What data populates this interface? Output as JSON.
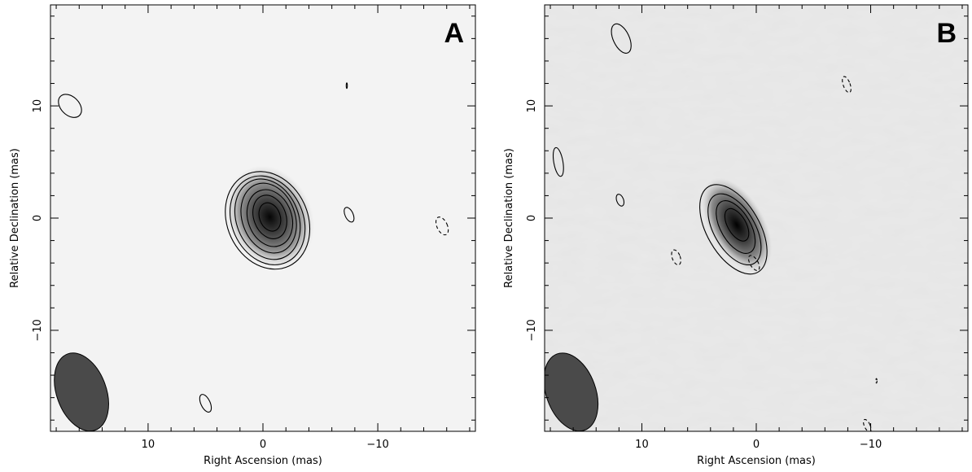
{
  "chart_data": [
    {
      "type": "contour",
      "panel_label": "A",
      "xlabel": "Right Ascension  (mas)",
      "ylabel": "Relative Declination  (mas)",
      "xlim": [
        18.5,
        -18.5
      ],
      "ylim": [
        -19,
        19
      ],
      "xticks": [
        10,
        0,
        -10
      ],
      "yticks": [
        10,
        0,
        -10
      ],
      "xtick_labels": [
        "10",
        "0",
        "−10"
      ],
      "ytick_labels": [
        "10",
        "0",
        "−10"
      ],
      "background": "#f3f3f3",
      "peak": {
        "x": -0.6,
        "y": 0.1
      },
      "beam": {
        "x": 15.8,
        "y": -15.5,
        "major": 3.8,
        "minor": 1.8,
        "angle": -20
      },
      "contours": [
        {
          "x": -0.6,
          "y": 0.1,
          "rx": 0.9,
          "ry": 1.3,
          "angle": -20,
          "style": "solid"
        },
        {
          "x": -0.6,
          "y": 0.1,
          "rx": 1.4,
          "ry": 2.0,
          "angle": -20,
          "style": "solid"
        },
        {
          "x": -0.6,
          "y": 0.0,
          "rx": 1.9,
          "ry": 2.6,
          "angle": -20,
          "style": "solid"
        },
        {
          "x": -0.5,
          "y": 0.0,
          "rx": 2.3,
          "ry": 3.2,
          "angle": -20,
          "style": "solid"
        },
        {
          "x": -0.4,
          "y": -0.1,
          "rx": 2.7,
          "ry": 3.7,
          "angle": -22,
          "style": "solid"
        },
        {
          "x": -0.4,
          "y": -0.2,
          "rx": 3.1,
          "ry": 4.1,
          "angle": -24,
          "style": "solid"
        },
        {
          "x": -0.4,
          "y": -0.2,
          "rx": 3.5,
          "ry": 4.5,
          "angle": -25,
          "style": "solid"
        },
        {
          "x": 16.8,
          "y": 10.0,
          "rx": 0.8,
          "ry": 1.2,
          "angle": -45,
          "style": "solid"
        },
        {
          "x": -7.5,
          "y": 0.3,
          "rx": 0.35,
          "ry": 0.7,
          "angle": -25,
          "style": "solid"
        },
        {
          "x": 5.0,
          "y": -16.5,
          "rx": 0.4,
          "ry": 0.85,
          "angle": -25,
          "style": "solid"
        },
        {
          "x": -7.3,
          "y": 11.8,
          "rx": 0.05,
          "ry": 0.25,
          "angle": 0,
          "style": "solid"
        },
        {
          "x": -15.6,
          "y": -0.7,
          "rx": 0.45,
          "ry": 0.85,
          "angle": -25,
          "style": "dashed"
        }
      ]
    },
    {
      "type": "contour",
      "panel_label": "B",
      "xlabel": "Right Ascension  (mas)",
      "ylabel": "Relative Declination  (mas)",
      "xlim": [
        18.5,
        -18.5
      ],
      "ylim": [
        -19,
        19
      ],
      "xticks": [
        10,
        0,
        -10
      ],
      "yticks": [
        10,
        0,
        -10
      ],
      "xtick_labels": [
        "10",
        "0",
        "−10"
      ],
      "ytick_labels": [
        "10",
        "0",
        "−10"
      ],
      "background": "#e6e6e6",
      "peak": {
        "x": 1.7,
        "y": -0.6
      },
      "beam": {
        "x": 16.2,
        "y": -15.5,
        "major": 3.8,
        "minor": 1.8,
        "angle": -20
      },
      "contours": [
        {
          "x": 1.7,
          "y": -0.6,
          "rx": 0.8,
          "ry": 1.6,
          "angle": -30,
          "style": "solid"
        },
        {
          "x": 1.8,
          "y": -0.8,
          "rx": 1.3,
          "ry": 2.6,
          "angle": -30,
          "style": "solid"
        },
        {
          "x": 1.9,
          "y": -1.0,
          "rx": 1.8,
          "ry": 3.5,
          "angle": -30,
          "style": "solid"
        },
        {
          "x": 2.0,
          "y": -1.0,
          "rx": 2.3,
          "ry": 4.4,
          "angle": -30,
          "style": "solid"
        },
        {
          "x": 11.8,
          "y": 16.0,
          "rx": 0.7,
          "ry": 1.4,
          "angle": -25,
          "style": "solid"
        },
        {
          "x": 17.3,
          "y": 5.0,
          "rx": 0.4,
          "ry": 1.3,
          "angle": -10,
          "style": "solid"
        },
        {
          "x": 11.9,
          "y": 1.6,
          "rx": 0.3,
          "ry": 0.55,
          "angle": -20,
          "style": "solid"
        },
        {
          "x": 7.0,
          "y": -3.5,
          "rx": 0.35,
          "ry": 0.7,
          "angle": -20,
          "style": "dashed"
        },
        {
          "x": 0.2,
          "y": -4.0,
          "rx": 0.35,
          "ry": 0.75,
          "angle": -30,
          "style": "dashed"
        },
        {
          "x": -7.9,
          "y": 11.9,
          "rx": 0.3,
          "ry": 0.75,
          "angle": -20,
          "style": "dashed"
        },
        {
          "x": -10.5,
          "y": -14.5,
          "rx": 0.05,
          "ry": 0.2,
          "angle": 0,
          "style": "dashed"
        },
        {
          "x": -9.7,
          "y": -18.5,
          "rx": 0.25,
          "ry": 0.6,
          "angle": -25,
          "style": "dashed"
        }
      ]
    }
  ]
}
